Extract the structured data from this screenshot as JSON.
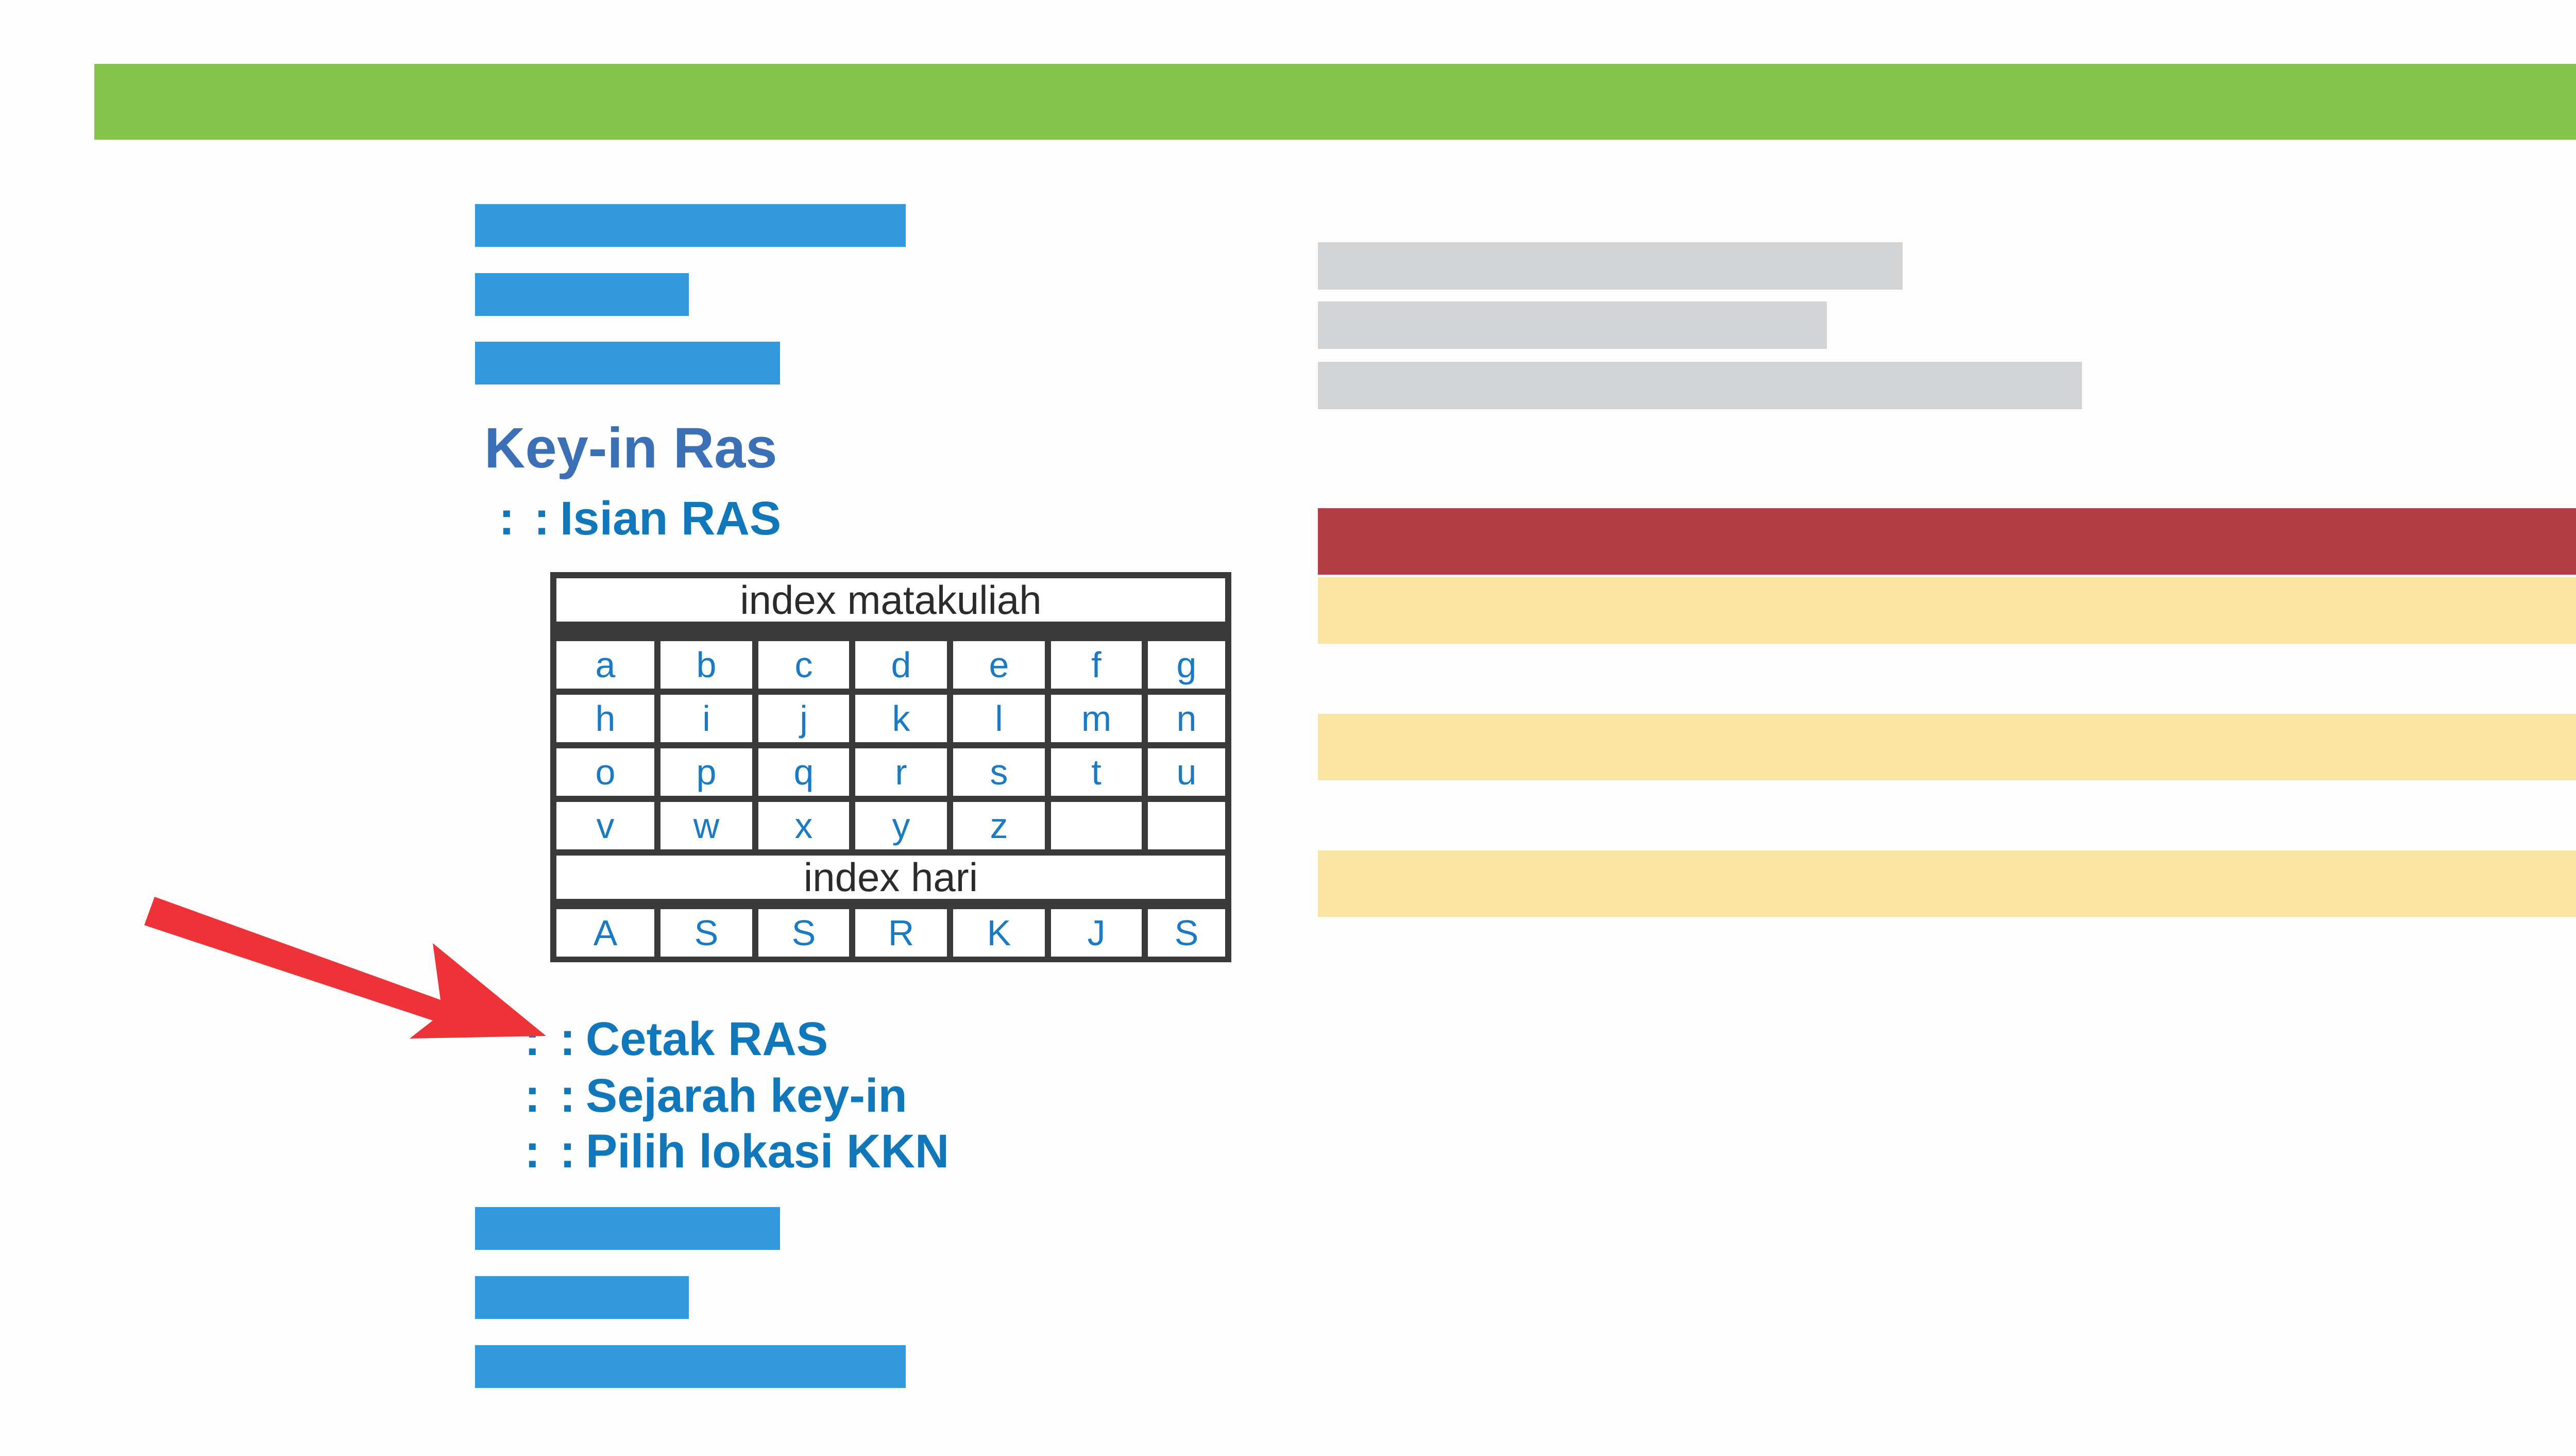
{
  "sidebar": {
    "title": "Key-in Ras",
    "menu_top": [
      {
        "sep": ": :",
        "label": "Isian RAS"
      }
    ],
    "index_matakuliah": {
      "header": "index matakuliah",
      "keys": [
        "a",
        "b",
        "c",
        "d",
        "e",
        "f",
        "g",
        "h",
        "i",
        "j",
        "k",
        "l",
        "m",
        "n",
        "o",
        "p",
        "q",
        "r",
        "s",
        "t",
        "u",
        "v",
        "w",
        "x",
        "y",
        "z",
        "",
        ""
      ]
    },
    "index_hari": {
      "header": "index hari",
      "keys": [
        "A",
        "S",
        "S",
        "R",
        "K",
        "J",
        "S"
      ]
    },
    "menu_bottom": [
      {
        "sep": ": :",
        "label": "Cetak RAS"
      },
      {
        "sep": ": :",
        "label": "Sejarah key-in"
      },
      {
        "sep": ": :",
        "label": "Pilih lokasi KKN"
      }
    ]
  },
  "colors": {
    "header_bar": "#84c34e",
    "nav_placeholder": "#3399dd",
    "info_placeholder": "#d3d4d5",
    "table_header_row": "#b33d45",
    "table_striped_row": "#fbe5a3",
    "highlight_arrow": "#ee3338",
    "link_text": "#1177bb",
    "title_text": "#3b6fb6"
  }
}
